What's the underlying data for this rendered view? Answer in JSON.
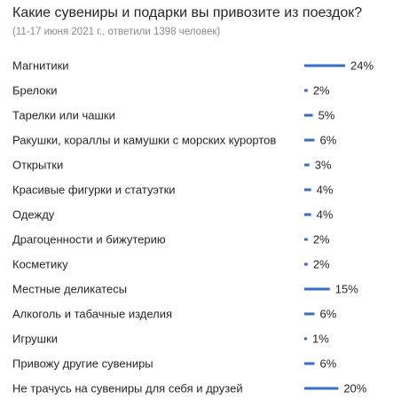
{
  "chart_data": {
    "type": "bar",
    "title": "Какие сувениры и подарки вы привозите из поездок?",
    "subtitle": "(11-17 июня 2021 г., ответили 1398 человек)",
    "xlabel": "",
    "ylabel": "",
    "orientation": "horizontal",
    "value_suffix": "%",
    "bar_color": "#2e6fd4",
    "categories": [
      "Магнитики",
      "Брелоки",
      "Тарелки или чашки",
      "Ракушки, кораллы и камушки с морских курортов",
      "Открытки",
      "Красивые фигурки и статуэтки",
      "Одежду",
      "Драгоценности и бижутерию",
      "Косметику",
      "Местные деликатесы",
      "Алкоголь и табачные изделия",
      "Игрушки",
      "Привожу другие сувениры",
      "Не трачусь на сувениры для себя и друзей"
    ],
    "values": [
      24,
      2,
      5,
      6,
      3,
      4,
      4,
      2,
      2,
      15,
      6,
      1,
      6,
      20
    ],
    "value_labels": [
      "24%",
      "2%",
      "5%",
      "6%",
      "3%",
      "4%",
      "4%",
      "2%",
      "2%",
      "15%",
      "6%",
      "1%",
      "6%",
      "20%"
    ]
  }
}
